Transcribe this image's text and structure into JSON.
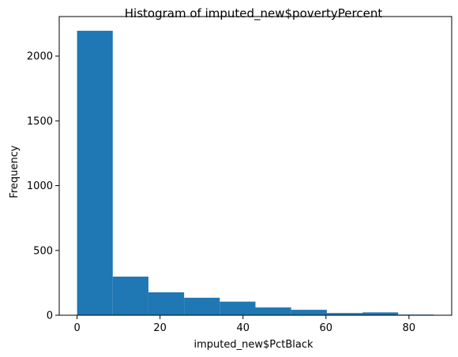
{
  "chart_data": {
    "type": "bar",
    "title": "Histogram of imputed_new$povertyPercent",
    "xlabel": "imputed_new$PctBlack",
    "ylabel": "Frequency",
    "bin_edges": [
      0,
      8.6,
      17.2,
      25.8,
      34.4,
      43.0,
      51.6,
      60.2,
      68.8,
      77.4,
      86.0
    ],
    "values": [
      2195,
      298,
      177,
      135,
      105,
      60,
      42,
      17,
      22,
      5
    ],
    "xlim": [
      -4.3,
      90.3
    ],
    "ylim": [
      0,
      2304.75
    ],
    "x_ticks": [
      0,
      20,
      40,
      60,
      80
    ],
    "y_ticks": [
      0,
      500,
      1000,
      1500,
      2000
    ],
    "bar_color": "#1f77b4",
    "grid": false
  }
}
